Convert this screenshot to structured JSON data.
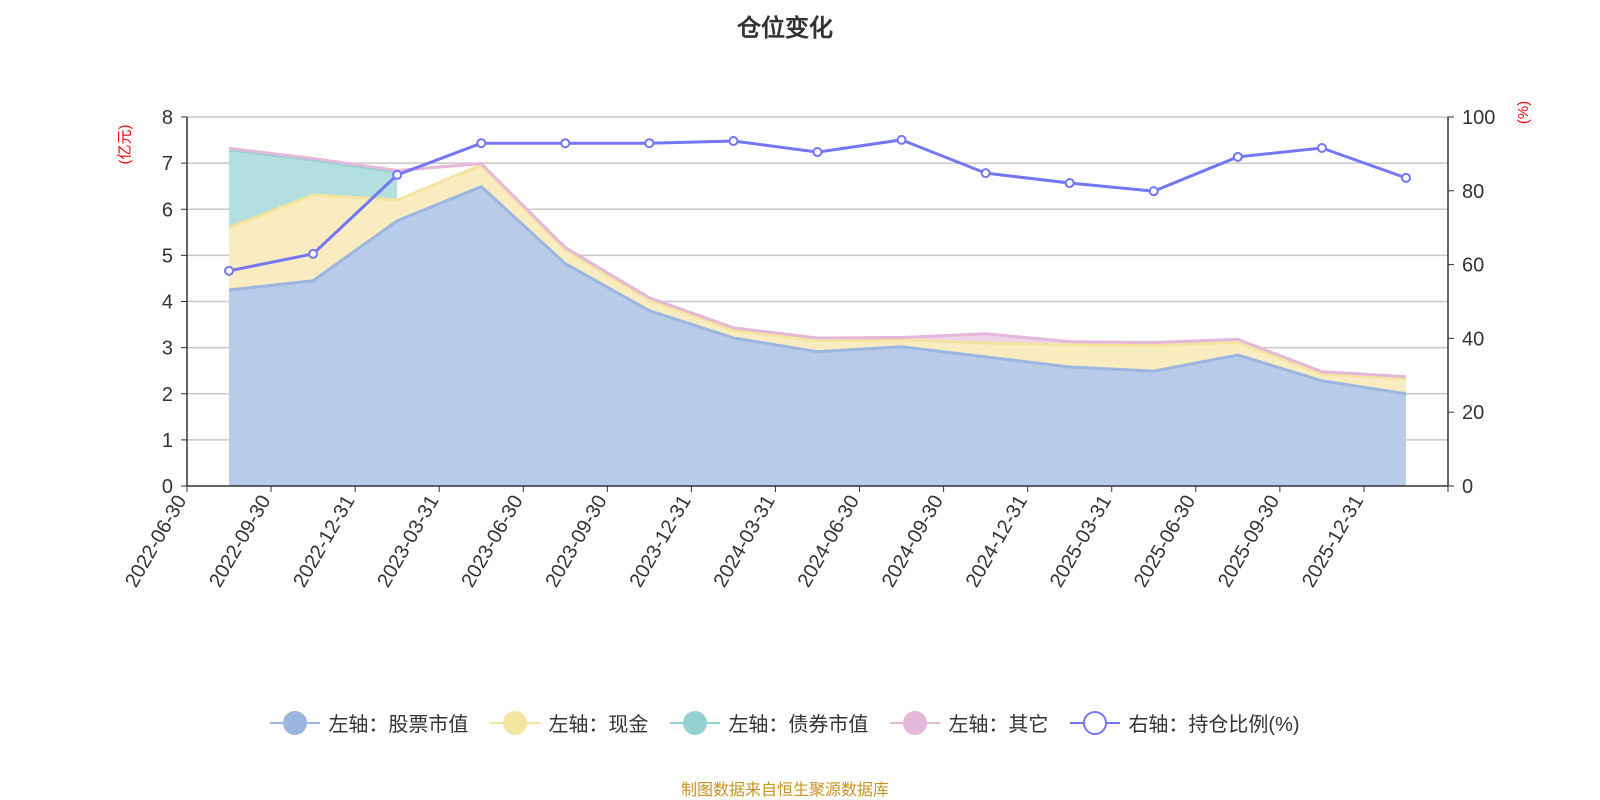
{
  "title": "仓位变化",
  "footer": "制图数据来自恒生聚源数据库",
  "chart_data": {
    "type": "area",
    "title": "仓位变化",
    "categories": [
      "2022-06-30",
      "2022-09-30",
      "2022-12-31",
      "2023-03-31",
      "2023-06-30",
      "2023-09-30",
      "2023-12-31",
      "2024-03-31",
      "2024-06-30",
      "2024-09-30",
      "2024-12-31",
      "2025-03-31",
      "2025-06-30",
      "2025-09-30",
      "2025-12-31"
    ],
    "left_axis": {
      "label": "(亿元)",
      "ylim": [
        0,
        8
      ],
      "ticks": [
        "0",
        "1",
        "2",
        "3",
        "4",
        "5",
        "6",
        "7",
        "8"
      ]
    },
    "right_axis": {
      "label": "(%)",
      "ylim": [
        0,
        100
      ],
      "ticks": [
        "0",
        "20",
        "40",
        "60",
        "80",
        "100"
      ]
    },
    "grid": true,
    "legend_position": "bottom",
    "series": [
      {
        "name": "左轴：股票市值",
        "axis": "left",
        "stacked": true,
        "color": "#9bb6e0",
        "fill": "#b8cbe8",
        "values": [
          4.25,
          4.45,
          5.75,
          6.49,
          4.82,
          3.8,
          3.21,
          2.91,
          3.02,
          2.8,
          2.58,
          2.49,
          2.84,
          2.28,
          2.0
        ]
      },
      {
        "name": "左轴：现金",
        "axis": "left",
        "stacked": true,
        "color": "#f5e3a0",
        "fill": "#f8ecc0",
        "values": [
          1.35,
          1.86,
          0.45,
          0.47,
          0.3,
          0.23,
          0.17,
          0.24,
          0.15,
          0.3,
          0.48,
          0.55,
          0.28,
          0.15,
          0.32
        ]
      },
      {
        "name": "左轴：债券市值",
        "axis": "left",
        "stacked": true,
        "color": "#93d2d2",
        "fill": "#b3dfdf",
        "values": [
          1.69,
          0.76,
          0.61,
          null,
          null,
          null,
          null,
          null,
          null,
          null,
          null,
          null,
          null,
          null,
          null
        ]
      },
      {
        "name": "左轴：其它",
        "axis": "left",
        "stacked": true,
        "color": "#e4b8da",
        "fill": "#efd4ea",
        "values": [
          0.03,
          0.03,
          0.03,
          0.03,
          0.05,
          0.05,
          0.05,
          0.06,
          0.05,
          0.2,
          0.07,
          0.07,
          0.06,
          0.05,
          0.05
        ]
      },
      {
        "name": "右轴：持仓比例(%)",
        "axis": "right",
        "type": "line",
        "color": "#7477f5",
        "values": [
          58.3,
          62.9,
          84.3,
          92.9,
          92.9,
          92.9,
          93.5,
          90.5,
          93.8,
          84.8,
          82.1,
          79.9,
          89.2,
          91.6,
          83.5
        ]
      }
    ]
  }
}
